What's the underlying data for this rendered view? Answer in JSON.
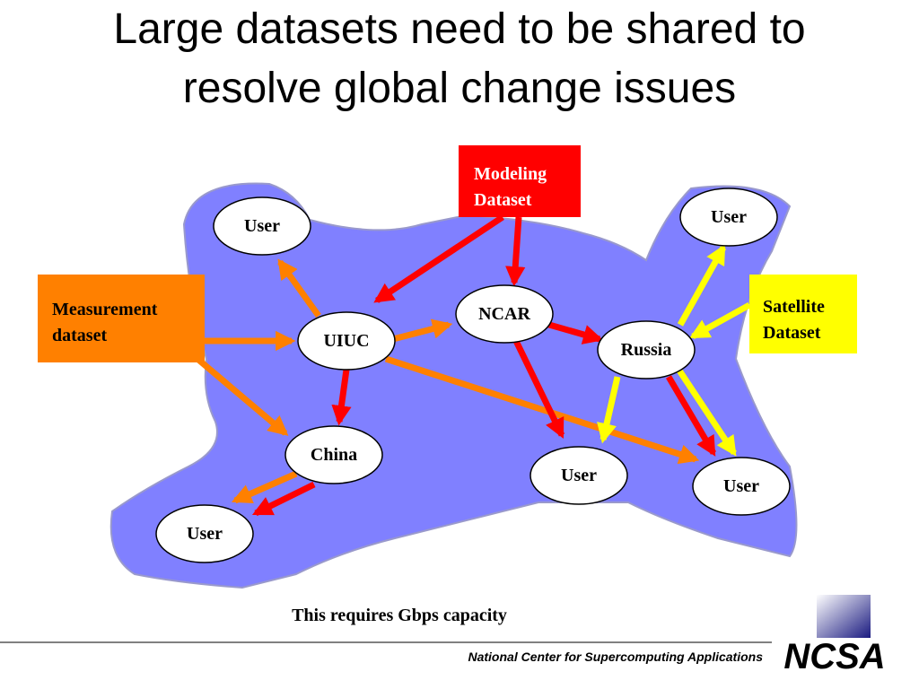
{
  "title": [
    "Large datasets need to be shared to",
    "resolve global change issues"
  ],
  "sources": [
    {
      "lines": [
        "Modeling",
        "Dataset"
      ]
    },
    {
      "lines": [
        "Measurement",
        "dataset"
      ]
    },
    {
      "lines": [
        "Satellite",
        "Dataset"
      ]
    }
  ],
  "nodes": [
    "User",
    "UIUC",
    "NCAR",
    "Russia",
    "China",
    "User",
    "User",
    "User",
    "User"
  ],
  "caption": "This requires Gbps capacity",
  "footer": "National Center for Supercomputing Applications",
  "logo": "NCSA"
}
